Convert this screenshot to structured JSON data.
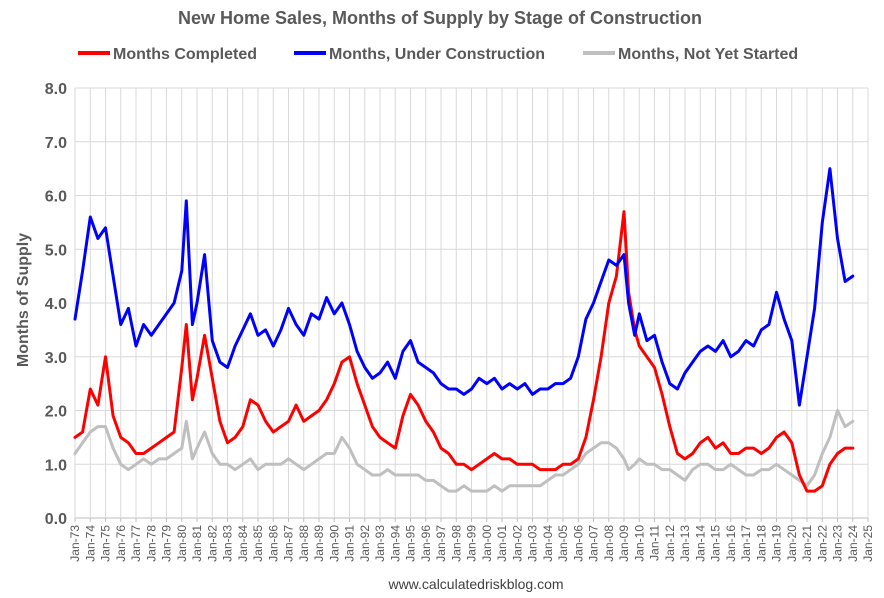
{
  "chart_data": {
    "type": "line",
    "title": "New Home Sales, Months of Supply by Stage of Construction",
    "ylabel": "Months of Supply",
    "xlabel": "",
    "ylim": [
      0,
      8
    ],
    "xlim": [
      1973,
      2025
    ],
    "yticks": [
      "0.0",
      "1.0",
      "2.0",
      "3.0",
      "4.0",
      "5.0",
      "6.0",
      "7.0",
      "8.0"
    ],
    "xticks": [
      "Jan-73",
      "Jan-74",
      "Jan-75",
      "Jan-76",
      "Jan-77",
      "Jan-78",
      "Jan-79",
      "Jan-80",
      "Jan-81",
      "Jan-82",
      "Jan-83",
      "Jan-84",
      "Jan-85",
      "Jan-86",
      "Jan-87",
      "Jan-88",
      "Jan-89",
      "Jan-90",
      "Jan-91",
      "Jan-92",
      "Jan-93",
      "Jan-94",
      "Jan-95",
      "Jan-96",
      "Jan-97",
      "Jan-98",
      "Jan-99",
      "Jan-00",
      "Jan-01",
      "Jan-02",
      "Jan-03",
      "Jan-04",
      "Jan-05",
      "Jan-06",
      "Jan-07",
      "Jan-08",
      "Jan-09",
      "Jan-10",
      "Jan-11",
      "Jan-12",
      "Jan-13",
      "Jan-14",
      "Jan-15",
      "Jan-16",
      "Jan-17",
      "Jan-18",
      "Jan-19",
      "Jan-20",
      "Jan-21",
      "Jan-22",
      "Jan-23",
      "Jan-24",
      "Jan-25"
    ],
    "grid": true,
    "legend_position": "top",
    "source": "www.calculatedriskblog.com",
    "series": [
      {
        "name": "Months Completed",
        "color": "#ff0000",
        "x": [
          1973.0,
          1973.5,
          1974.0,
          1974.5,
          1975.0,
          1975.5,
          1976.0,
          1976.5,
          1977.0,
          1977.5,
          1978.0,
          1978.5,
          1979.0,
          1979.5,
          1980.0,
          1980.3,
          1980.7,
          1981.0,
          1981.5,
          1982.0,
          1982.5,
          1983.0,
          1983.5,
          1984.0,
          1984.5,
          1985.0,
          1985.5,
          1986.0,
          1986.5,
          1987.0,
          1987.5,
          1988.0,
          1988.5,
          1989.0,
          1989.5,
          1990.0,
          1990.5,
          1991.0,
          1991.5,
          1992.0,
          1992.5,
          1993.0,
          1993.5,
          1994.0,
          1994.5,
          1995.0,
          1995.5,
          1996.0,
          1996.5,
          1997.0,
          1997.5,
          1998.0,
          1998.5,
          1999.0,
          1999.5,
          2000.0,
          2000.5,
          2001.0,
          2001.5,
          2002.0,
          2002.5,
          2003.0,
          2003.5,
          2004.0,
          2004.5,
          2005.0,
          2005.5,
          2006.0,
          2006.5,
          2007.0,
          2007.5,
          2008.0,
          2008.5,
          2009.0,
          2009.3,
          2009.7,
          2010.0,
          2010.5,
          2011.0,
          2011.5,
          2012.0,
          2012.5,
          2013.0,
          2013.5,
          2014.0,
          2014.5,
          2015.0,
          2015.5,
          2016.0,
          2016.5,
          2017.0,
          2017.5,
          2018.0,
          2018.5,
          2019.0,
          2019.5,
          2020.0,
          2020.5,
          2021.0,
          2021.5,
          2022.0,
          2022.5,
          2023.0,
          2023.5,
          2024.0
        ],
        "values": [
          1.5,
          1.6,
          2.4,
          2.1,
          3.0,
          1.9,
          1.5,
          1.4,
          1.2,
          1.2,
          1.3,
          1.4,
          1.5,
          1.6,
          2.8,
          3.6,
          2.2,
          2.6,
          3.4,
          2.6,
          1.8,
          1.4,
          1.5,
          1.7,
          2.2,
          2.1,
          1.8,
          1.6,
          1.7,
          1.8,
          2.1,
          1.8,
          1.9,
          2.0,
          2.2,
          2.5,
          2.9,
          3.0,
          2.5,
          2.1,
          1.7,
          1.5,
          1.4,
          1.3,
          1.9,
          2.3,
          2.1,
          1.8,
          1.6,
          1.3,
          1.2,
          1.0,
          1.0,
          0.9,
          1.0,
          1.1,
          1.2,
          1.1,
          1.1,
          1.0,
          1.0,
          1.0,
          0.9,
          0.9,
          0.9,
          1.0,
          1.0,
          1.1,
          1.5,
          2.2,
          3.0,
          4.0,
          4.5,
          5.7,
          4.2,
          3.5,
          3.2,
          3.0,
          2.8,
          2.3,
          1.7,
          1.2,
          1.1,
          1.2,
          1.4,
          1.5,
          1.3,
          1.4,
          1.2,
          1.2,
          1.3,
          1.3,
          1.2,
          1.3,
          1.5,
          1.6,
          1.4,
          0.8,
          0.5,
          0.5,
          0.6,
          1.0,
          1.2,
          1.3,
          1.3
        ]
      },
      {
        "name": "Months, Under Construction",
        "color": "#0000ff",
        "x": [
          1973.0,
          1973.5,
          1974.0,
          1974.5,
          1975.0,
          1975.5,
          1976.0,
          1976.5,
          1977.0,
          1977.5,
          1978.0,
          1978.5,
          1979.0,
          1979.5,
          1980.0,
          1980.3,
          1980.7,
          1981.0,
          1981.5,
          1982.0,
          1982.5,
          1983.0,
          1983.5,
          1984.0,
          1984.5,
          1985.0,
          1985.5,
          1986.0,
          1986.5,
          1987.0,
          1987.5,
          1988.0,
          1988.5,
          1989.0,
          1989.5,
          1990.0,
          1990.5,
          1991.0,
          1991.5,
          1992.0,
          1992.5,
          1993.0,
          1993.5,
          1994.0,
          1994.5,
          1995.0,
          1995.5,
          1996.0,
          1996.5,
          1997.0,
          1997.5,
          1998.0,
          1998.5,
          1999.0,
          1999.5,
          2000.0,
          2000.5,
          2001.0,
          2001.5,
          2002.0,
          2002.5,
          2003.0,
          2003.5,
          2004.0,
          2004.5,
          2005.0,
          2005.5,
          2006.0,
          2006.5,
          2007.0,
          2007.5,
          2008.0,
          2008.5,
          2009.0,
          2009.3,
          2009.7,
          2010.0,
          2010.5,
          2011.0,
          2011.5,
          2012.0,
          2012.5,
          2013.0,
          2013.5,
          2014.0,
          2014.5,
          2015.0,
          2015.5,
          2016.0,
          2016.5,
          2017.0,
          2017.5,
          2018.0,
          2018.5,
          2019.0,
          2019.5,
          2020.0,
          2020.5,
          2021.0,
          2021.5,
          2022.0,
          2022.5,
          2023.0,
          2023.5,
          2024.0
        ],
        "values": [
          3.7,
          4.6,
          5.6,
          5.2,
          5.4,
          4.5,
          3.6,
          3.9,
          3.2,
          3.6,
          3.4,
          3.6,
          3.8,
          4.0,
          4.6,
          5.9,
          3.6,
          4.0,
          4.9,
          3.3,
          2.9,
          2.8,
          3.2,
          3.5,
          3.8,
          3.4,
          3.5,
          3.2,
          3.5,
          3.9,
          3.6,
          3.4,
          3.8,
          3.7,
          4.1,
          3.8,
          4.0,
          3.6,
          3.1,
          2.8,
          2.6,
          2.7,
          2.9,
          2.6,
          3.1,
          3.3,
          2.9,
          2.8,
          2.7,
          2.5,
          2.4,
          2.4,
          2.3,
          2.4,
          2.6,
          2.5,
          2.6,
          2.4,
          2.5,
          2.4,
          2.5,
          2.3,
          2.4,
          2.4,
          2.5,
          2.5,
          2.6,
          3.0,
          3.7,
          4.0,
          4.4,
          4.8,
          4.7,
          4.9,
          4.0,
          3.4,
          3.8,
          3.3,
          3.4,
          2.9,
          2.5,
          2.4,
          2.7,
          2.9,
          3.1,
          3.2,
          3.1,
          3.3,
          3.0,
          3.1,
          3.3,
          3.2,
          3.5,
          3.6,
          4.2,
          3.7,
          3.3,
          2.1,
          3.0,
          3.9,
          5.5,
          6.5,
          5.2,
          4.4,
          4.5
        ]
      },
      {
        "name": "Months, Not Yet Started",
        "color": "#bfbfbf",
        "x": [
          1973.0,
          1973.5,
          1974.0,
          1974.5,
          1975.0,
          1975.5,
          1976.0,
          1976.5,
          1977.0,
          1977.5,
          1978.0,
          1978.5,
          1979.0,
          1979.5,
          1980.0,
          1980.3,
          1980.7,
          1981.0,
          1981.5,
          1982.0,
          1982.5,
          1983.0,
          1983.5,
          1984.0,
          1984.5,
          1985.0,
          1985.5,
          1986.0,
          1986.5,
          1987.0,
          1987.5,
          1988.0,
          1988.5,
          1989.0,
          1989.5,
          1990.0,
          1990.5,
          1991.0,
          1991.5,
          1992.0,
          1992.5,
          1993.0,
          1993.5,
          1994.0,
          1994.5,
          1995.0,
          1995.5,
          1996.0,
          1996.5,
          1997.0,
          1997.5,
          1998.0,
          1998.5,
          1999.0,
          1999.5,
          2000.0,
          2000.5,
          2001.0,
          2001.5,
          2002.0,
          2002.5,
          2003.0,
          2003.5,
          2004.0,
          2004.5,
          2005.0,
          2005.5,
          2006.0,
          2006.5,
          2007.0,
          2007.5,
          2008.0,
          2008.5,
          2009.0,
          2009.3,
          2009.7,
          2010.0,
          2010.5,
          2011.0,
          2011.5,
          2012.0,
          2012.5,
          2013.0,
          2013.5,
          2014.0,
          2014.5,
          2015.0,
          2015.5,
          2016.0,
          2016.5,
          2017.0,
          2017.5,
          2018.0,
          2018.5,
          2019.0,
          2019.5,
          2020.0,
          2020.5,
          2021.0,
          2021.5,
          2022.0,
          2022.5,
          2023.0,
          2023.5,
          2024.0
        ],
        "values": [
          1.2,
          1.4,
          1.6,
          1.7,
          1.7,
          1.3,
          1.0,
          0.9,
          1.0,
          1.1,
          1.0,
          1.1,
          1.1,
          1.2,
          1.3,
          1.8,
          1.1,
          1.3,
          1.6,
          1.2,
          1.0,
          1.0,
          0.9,
          1.0,
          1.1,
          0.9,
          1.0,
          1.0,
          1.0,
          1.1,
          1.0,
          0.9,
          1.0,
          1.1,
          1.2,
          1.2,
          1.5,
          1.3,
          1.0,
          0.9,
          0.8,
          0.8,
          0.9,
          0.8,
          0.8,
          0.8,
          0.8,
          0.7,
          0.7,
          0.6,
          0.5,
          0.5,
          0.6,
          0.5,
          0.5,
          0.5,
          0.6,
          0.5,
          0.6,
          0.6,
          0.6,
          0.6,
          0.6,
          0.7,
          0.8,
          0.8,
          0.9,
          1.0,
          1.2,
          1.3,
          1.4,
          1.4,
          1.3,
          1.1,
          0.9,
          1.0,
          1.1,
          1.0,
          1.0,
          0.9,
          0.9,
          0.8,
          0.7,
          0.9,
          1.0,
          1.0,
          0.9,
          0.9,
          1.0,
          0.9,
          0.8,
          0.8,
          0.9,
          0.9,
          1.0,
          0.9,
          0.8,
          0.7,
          0.6,
          0.8,
          1.2,
          1.5,
          2.0,
          1.7,
          1.8
        ]
      }
    ]
  }
}
